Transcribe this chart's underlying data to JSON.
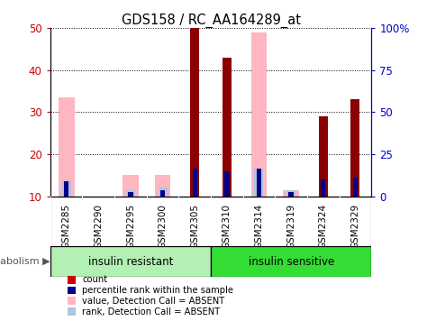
{
  "title": "GDS158 / RC_AA164289_at",
  "samples": [
    "GSM2285",
    "GSM2290",
    "GSM2295",
    "GSM2300",
    "GSM2305",
    "GSM2310",
    "GSM2314",
    "GSM2319",
    "GSM2324",
    "GSM2329"
  ],
  "groups": [
    {
      "label": "insulin resistant",
      "start": 0,
      "end": 5,
      "color": "#b3f0b3"
    },
    {
      "label": "insulin sensitive",
      "start": 5,
      "end": 10,
      "color": "#33dd33"
    }
  ],
  "ylim_left": [
    10,
    50
  ],
  "ylim_right": [
    0,
    100
  ],
  "yticks_left": [
    10,
    20,
    30,
    40,
    50
  ],
  "yticks_right": [
    0,
    25,
    50,
    75,
    100
  ],
  "ytick_labels_right": [
    "0",
    "25",
    "50",
    "75",
    "100%"
  ],
  "count_values": [
    0,
    0,
    0,
    0,
    50,
    43,
    0,
    0,
    29,
    33
  ],
  "rank_values": [
    13.5,
    0,
    11.0,
    11.5,
    16.5,
    16.0,
    16.5,
    11.0,
    14.0,
    14.5
  ],
  "absent_value_values": [
    33.5,
    0,
    15.0,
    15.0,
    0,
    0,
    49.0,
    11.5,
    0,
    0
  ],
  "absent_rank_values": [
    13.5,
    0,
    11.5,
    12.0,
    0,
    0,
    16.5,
    11.5,
    0,
    0
  ],
  "count_color": "#8b0000",
  "rank_color": "#00008b",
  "absent_value_color": "#ffb6c1",
  "absent_rank_color": "#b0c4de",
  "axis_left_color": "#cc0000",
  "axis_right_color": "#0000cc",
  "background_color": "#ffffff",
  "tick_label_area_color": "#d3d3d3",
  "legend_items": [
    {
      "color": "#cc0000",
      "label": "count"
    },
    {
      "color": "#00008b",
      "label": "percentile rank within the sample"
    },
    {
      "color": "#ffb6c1",
      "label": "value, Detection Call = ABSENT"
    },
    {
      "color": "#b0c4de",
      "label": "rank, Detection Call = ABSENT"
    }
  ]
}
